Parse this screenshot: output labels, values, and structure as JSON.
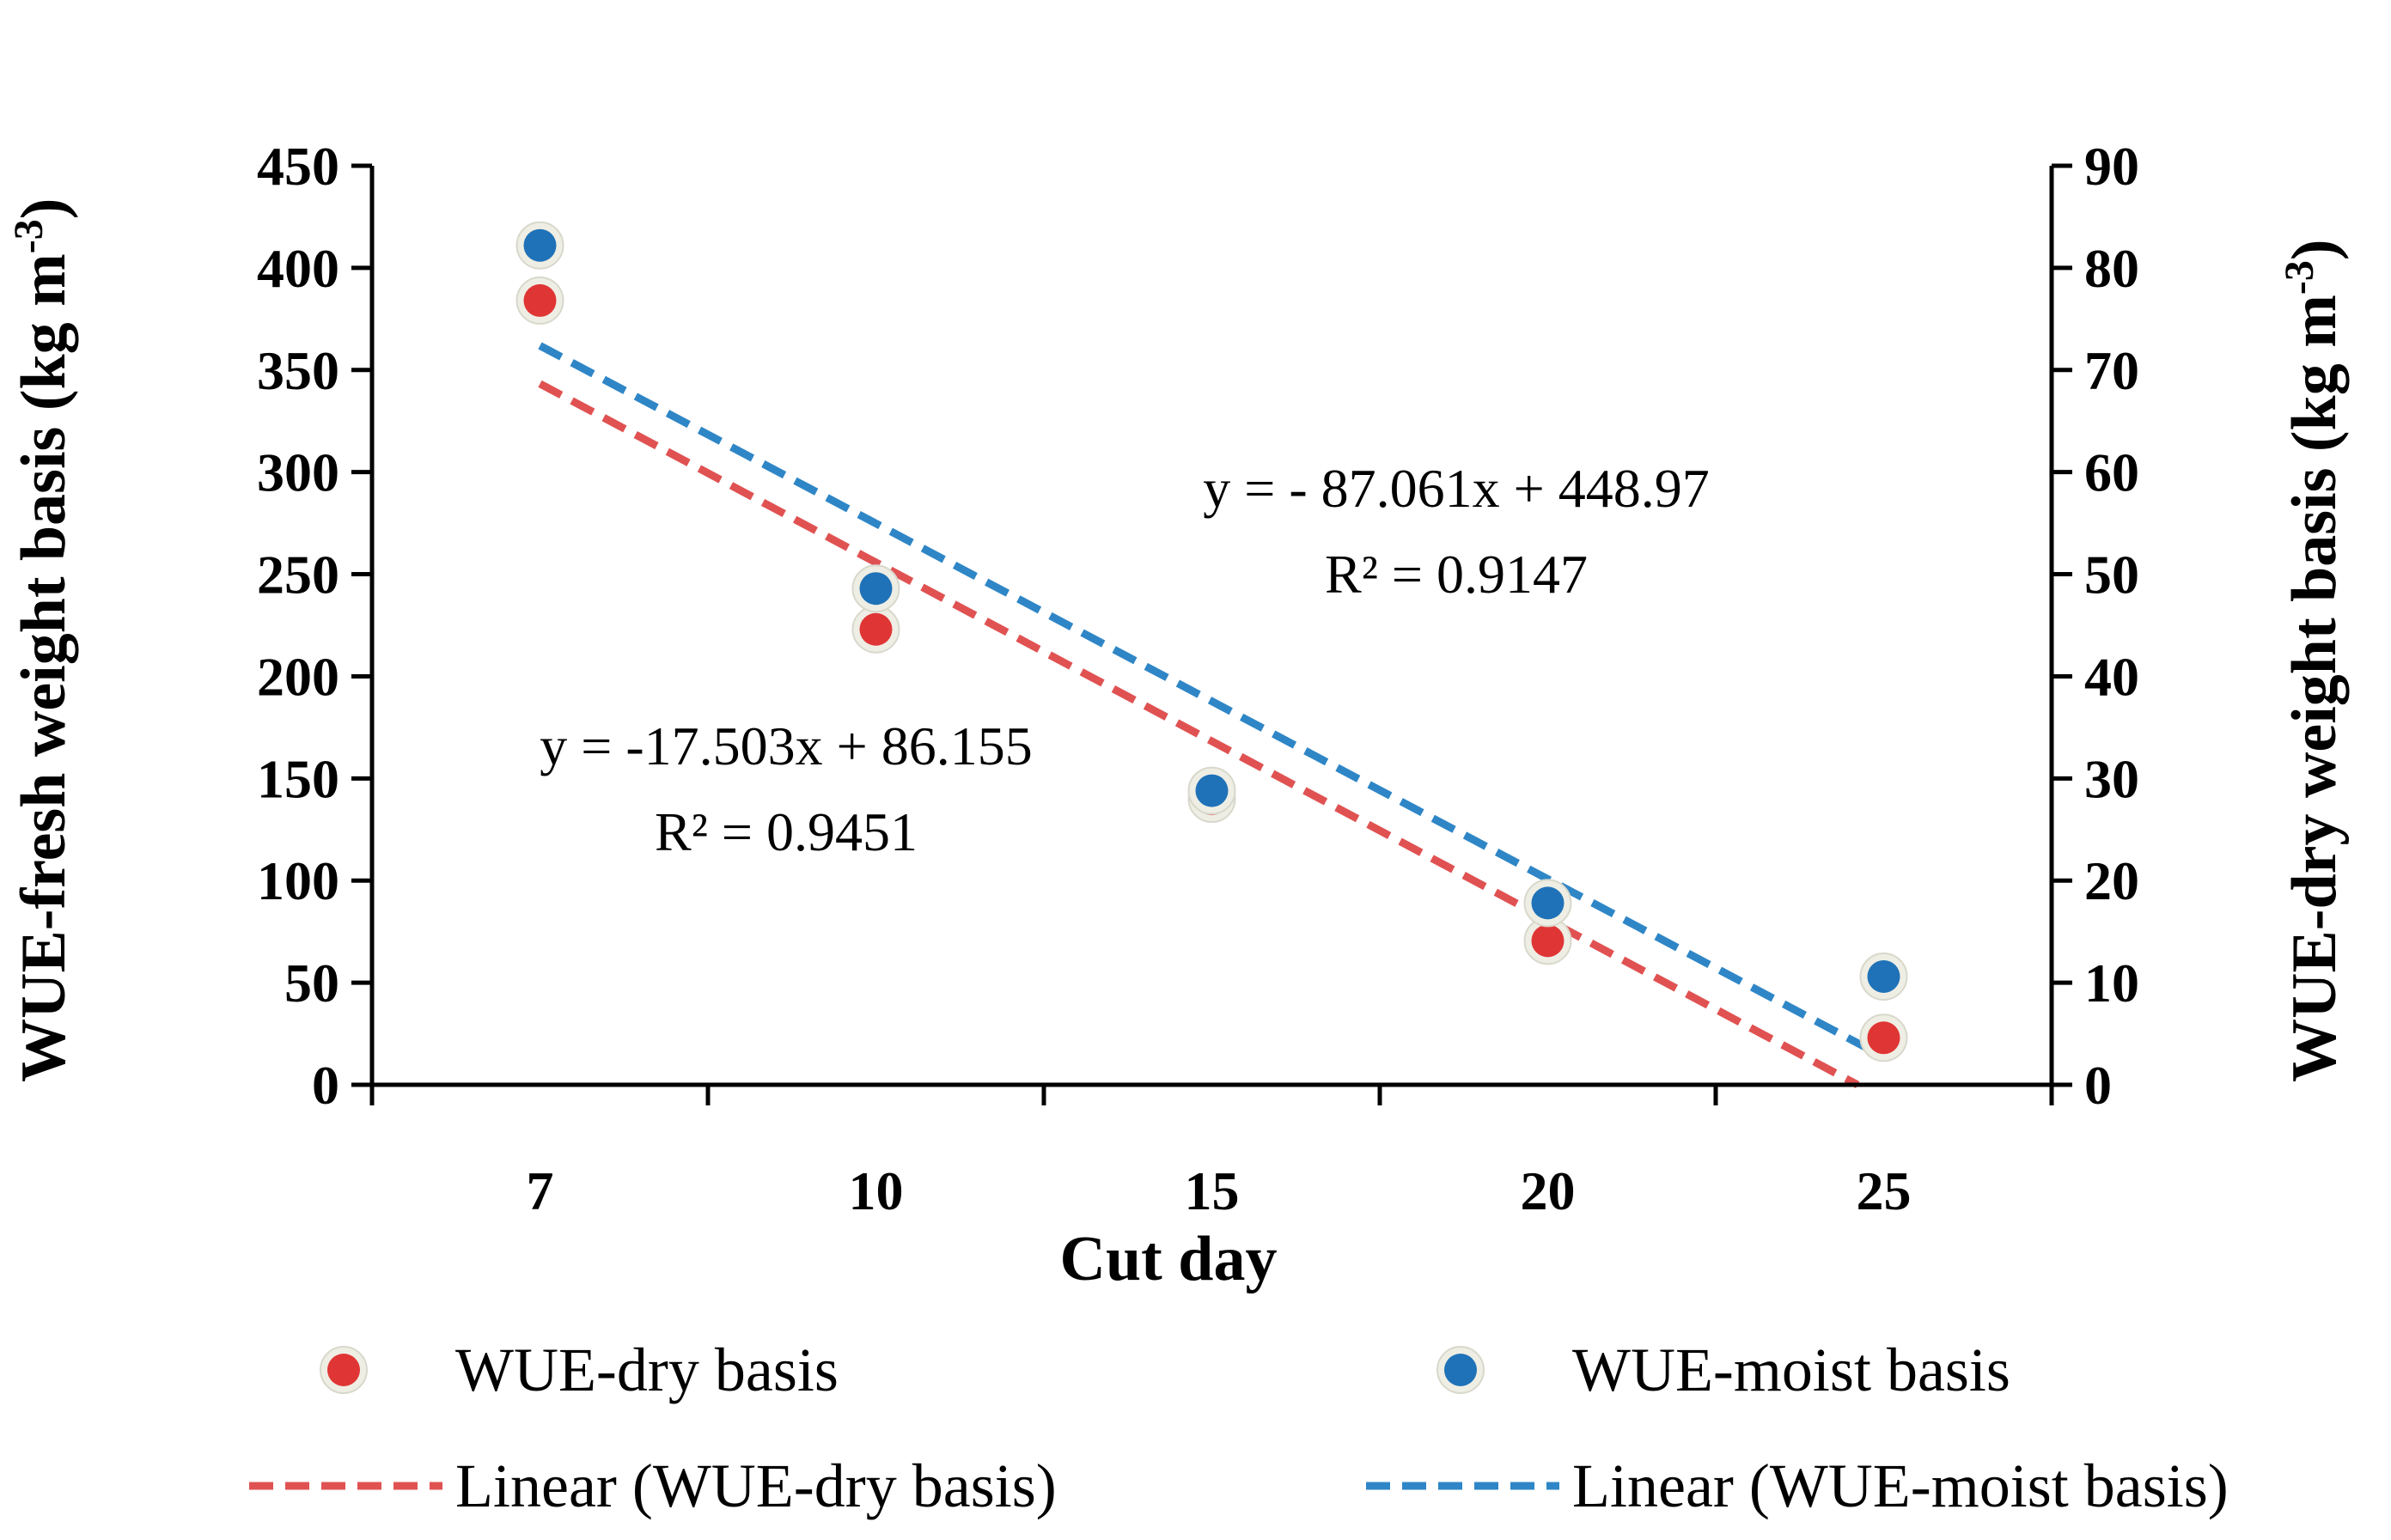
{
  "chart_data": {
    "type": "scatter",
    "xlabel": "Cut day",
    "ylabel": "WUE-fresh weight basis (kg m-3)",
    "ylabel_parts": {
      "base": "WUE-fresh weight basis (kg m",
      "sup": "-3",
      "close": ")"
    },
    "y2label": "WUE-dry weight basis (kg m-3)",
    "y2label_parts": {
      "base": "WUE-dry weight basis (kg m",
      "sup": "-3",
      "close": ")"
    },
    "categories": [
      "7",
      "10",
      "15",
      "20",
      "25"
    ],
    "ylim": [
      0,
      450
    ],
    "yticks": [
      0,
      50,
      100,
      150,
      200,
      250,
      300,
      350,
      400,
      450
    ],
    "y2lim": [
      0,
      90
    ],
    "y2ticks": [
      0,
      10,
      20,
      30,
      40,
      50,
      60,
      70,
      80,
      90
    ],
    "series": [
      {
        "name": "WUE-dry basis",
        "axis": "right",
        "color": "#e03535",
        "values": [
          76.8,
          44.6,
          28.0,
          14.1,
          4.6
        ],
        "trend": {
          "name": "Linear (WUE-dry basis)",
          "slope": -17.503,
          "intercept": 86.155,
          "equation": "y = -17.503x + 86.155",
          "r2": "R² = 0.9451"
        }
      },
      {
        "name": "WUE-moist basis",
        "axis": "left",
        "color": "#1f72b8",
        "values": [
          411,
          243,
          144,
          89,
          53
        ],
        "trend": {
          "name": "Linear (WUE-moist basis)",
          "slope": -87.061,
          "intercept": 448.97,
          "equation": "y = - 87.061x + 448.97",
          "r2": "R² = 0.9147"
        }
      }
    ],
    "trend_dry_color": "#e05252",
    "trend_moist_color": "#2f86c6",
    "legend": [
      {
        "label": "WUE-dry basis",
        "kind": "marker",
        "series": 0
      },
      {
        "label": "WUE-moist basis",
        "kind": "marker",
        "series": 1
      },
      {
        "label": "Linear (WUE-dry basis)",
        "kind": "line",
        "series": 0
      },
      {
        "label": "Linear (WUE-moist basis)",
        "kind": "line",
        "series": 1
      }
    ],
    "legend_position": "bottom"
  }
}
